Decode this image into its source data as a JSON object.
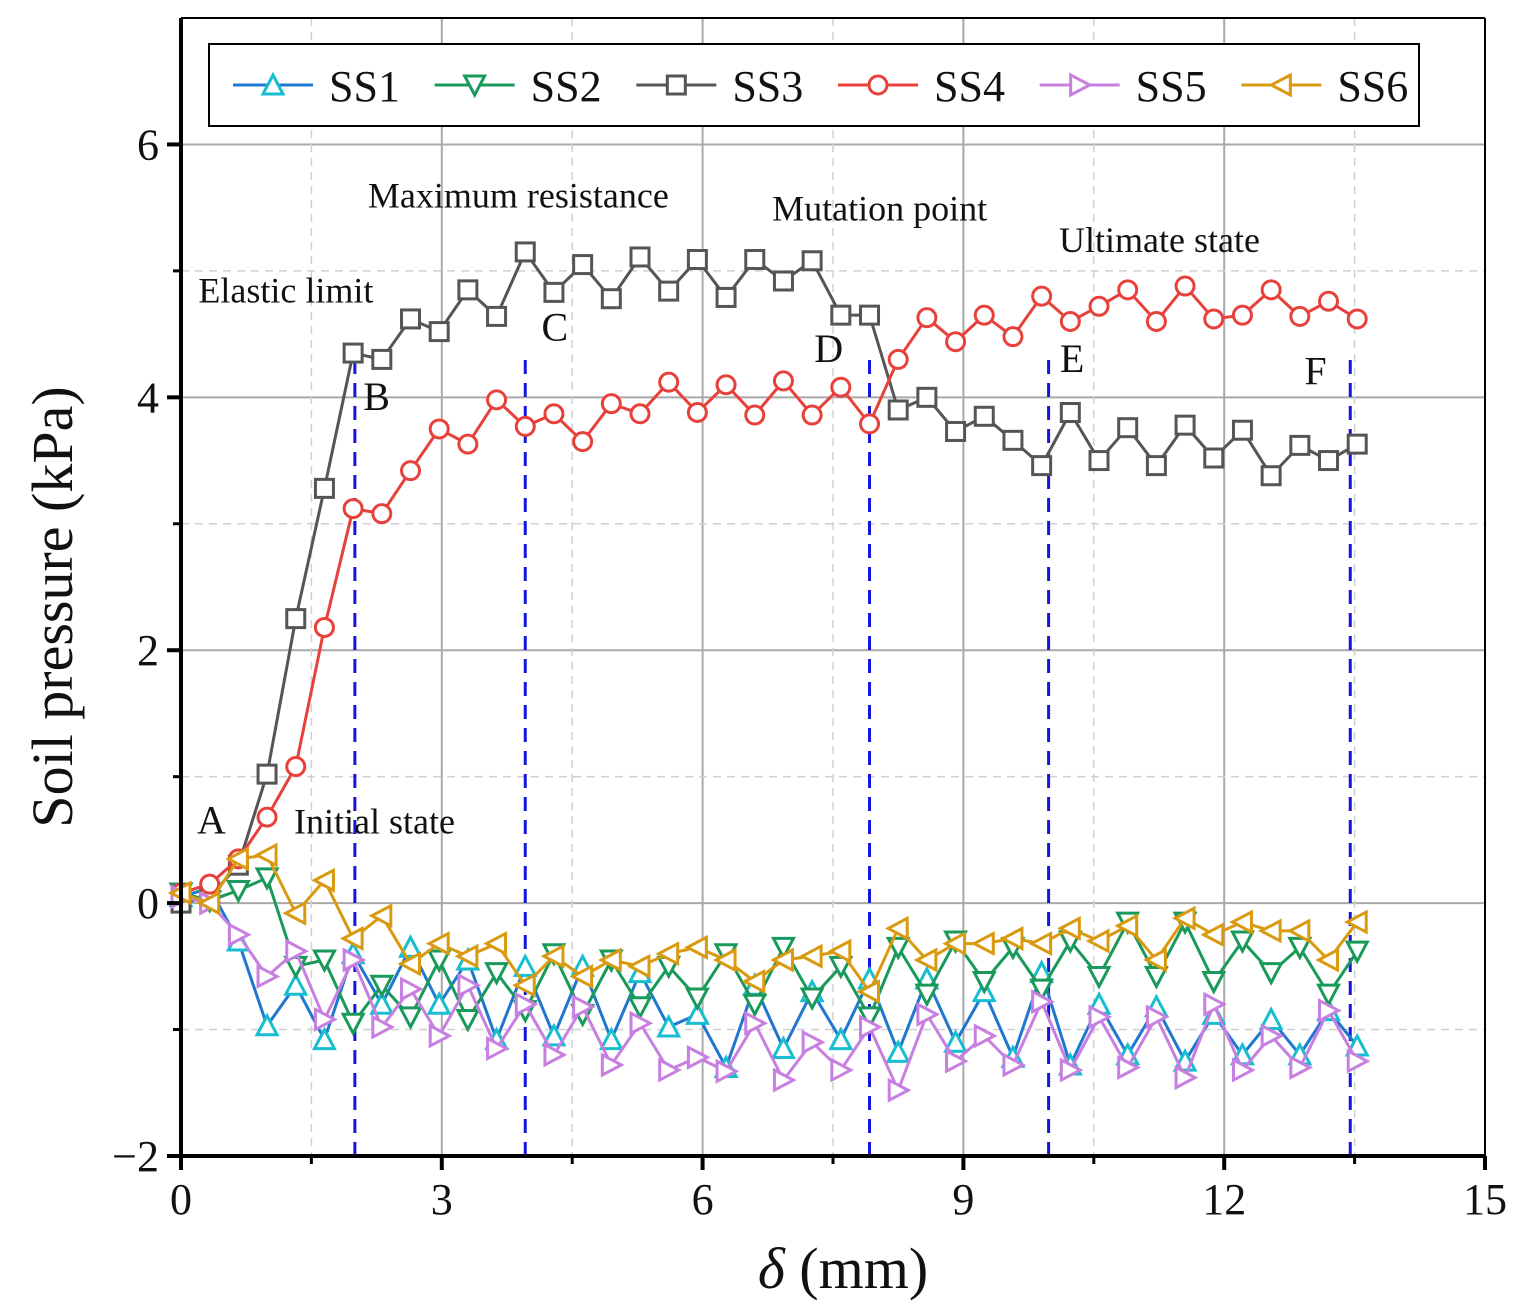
{
  "chart_data": {
    "type": "line",
    "title": "",
    "xlabel_symbol": "δ",
    "xlabel_unit": " (mm)",
    "ylabel": "Soil pressure (kPa)",
    "xlim": [
      0,
      15
    ],
    "ylim": [
      -2,
      7
    ],
    "xticks": [
      0,
      3,
      6,
      9,
      12,
      15
    ],
    "xtick_labels": [
      "0",
      "3",
      "6",
      "9",
      "12",
      "15"
    ],
    "yticks": [
      -2,
      0,
      2,
      4,
      6
    ],
    "ytick_labels": [
      "−2",
      "0",
      "2",
      "4",
      "6"
    ],
    "grid": true,
    "legend_position": "top",
    "x": [
      0,
      0.33,
      0.66,
      0.99,
      1.32,
      1.65,
      1.98,
      2.31,
      2.64,
      2.97,
      3.3,
      3.63,
      3.96,
      4.29,
      4.62,
      4.95,
      5.28,
      5.61,
      5.94,
      6.27,
      6.6,
      6.93,
      7.26,
      7.59,
      7.92,
      8.25,
      8.58,
      8.91,
      9.24,
      9.57,
      9.9,
      10.23,
      10.56,
      10.89,
      11.22,
      11.55,
      11.88,
      12.21,
      12.54,
      12.87,
      13.2,
      13.53
    ],
    "series": [
      {
        "name": "SS1",
        "color": "#1f77d0",
        "marker_color": "#17becf",
        "marker": "triangle-up",
        "values": [
          0.05,
          0.12,
          -0.3,
          -0.97,
          -0.65,
          -1.08,
          -0.4,
          -0.8,
          -0.35,
          -0.8,
          -0.45,
          -1.08,
          -0.5,
          -1.05,
          -0.5,
          -1.08,
          -0.55,
          -0.98,
          -0.88,
          -1.3,
          -0.65,
          -1.15,
          -0.7,
          -1.08,
          -0.6,
          -1.18,
          -0.6,
          -1.1,
          -0.7,
          -1.22,
          -0.55,
          -1.28,
          -0.8,
          -1.2,
          -0.82,
          -1.25,
          -0.88,
          -1.2,
          -0.92,
          -1.2,
          -0.85,
          -1.13
        ]
      },
      {
        "name": "SS2",
        "color": "#1a9a5a",
        "marker_color": "#1a9a5a",
        "marker": "triangle-down",
        "values": [
          0.08,
          0.02,
          0.1,
          0.2,
          -0.5,
          -0.45,
          -0.95,
          -0.65,
          -0.9,
          -0.45,
          -0.92,
          -0.55,
          -0.85,
          -0.4,
          -0.88,
          -0.45,
          -0.82,
          -0.5,
          -0.75,
          -0.4,
          -0.8,
          -0.35,
          -0.75,
          -0.5,
          -0.9,
          -0.35,
          -0.72,
          -0.3,
          -0.62,
          -0.35,
          -0.68,
          -0.3,
          -0.58,
          -0.15,
          -0.58,
          -0.15,
          -0.62,
          -0.3,
          -0.55,
          -0.35,
          -0.72,
          -0.38
        ]
      },
      {
        "name": "SS3",
        "color": "#555555",
        "marker_color": "#555555",
        "marker": "square",
        "values": [
          0.0,
          0.05,
          0.3,
          1.02,
          2.25,
          3.28,
          4.35,
          4.3,
          4.62,
          4.52,
          4.85,
          4.64,
          5.15,
          4.83,
          5.05,
          4.78,
          5.11,
          4.84,
          5.09,
          4.79,
          5.09,
          4.92,
          5.08,
          4.65,
          4.65,
          3.9,
          4.0,
          3.73,
          3.85,
          3.66,
          3.46,
          3.88,
          3.5,
          3.76,
          3.46,
          3.78,
          3.52,
          3.74,
          3.38,
          3.62,
          3.5,
          3.63
        ]
      },
      {
        "name": "SS4",
        "color": "#e8403a",
        "marker_color": "#e8403a",
        "marker": "circle",
        "values": [
          0.08,
          0.15,
          0.35,
          0.68,
          1.08,
          2.18,
          3.12,
          3.08,
          3.42,
          3.75,
          3.63,
          3.98,
          3.77,
          3.87,
          3.65,
          3.95,
          3.87,
          4.12,
          3.88,
          4.1,
          3.86,
          4.13,
          3.86,
          4.08,
          3.79,
          4.3,
          4.63,
          4.44,
          4.65,
          4.48,
          4.8,
          4.6,
          4.72,
          4.85,
          4.6,
          4.88,
          4.62,
          4.65,
          4.85,
          4.64,
          4.76,
          4.62
        ]
      },
      {
        "name": "SS5",
        "color": "#c77fe0",
        "marker_color": "#c77fe0",
        "marker": "triangle-right",
        "values": [
          0.05,
          0.0,
          -0.25,
          -0.58,
          -0.38,
          -0.92,
          -0.45,
          -0.98,
          -0.68,
          -1.05,
          -0.65,
          -1.15,
          -0.8,
          -1.2,
          -0.82,
          -1.28,
          -0.95,
          -1.32,
          -1.22,
          -1.33,
          -0.95,
          -1.4,
          -1.1,
          -1.32,
          -0.98,
          -1.48,
          -0.88,
          -1.25,
          -1.05,
          -1.28,
          -0.78,
          -1.32,
          -0.9,
          -1.3,
          -0.9,
          -1.38,
          -0.8,
          -1.32,
          -1.05,
          -1.3,
          -0.85,
          -1.25
        ]
      },
      {
        "name": "SS6",
        "color": "#d99a10",
        "marker_color": "#d99a10",
        "marker": "triangle-left",
        "values": [
          0.08,
          0.0,
          0.35,
          0.38,
          -0.08,
          0.18,
          -0.28,
          -0.1,
          -0.48,
          -0.32,
          -0.42,
          -0.32,
          -0.65,
          -0.42,
          -0.58,
          -0.45,
          -0.5,
          -0.4,
          -0.35,
          -0.45,
          -0.62,
          -0.45,
          -0.42,
          -0.38,
          -0.7,
          -0.2,
          -0.45,
          -0.32,
          -0.32,
          -0.28,
          -0.32,
          -0.2,
          -0.3,
          -0.18,
          -0.45,
          -0.12,
          -0.25,
          -0.15,
          -0.22,
          -0.22,
          -0.45,
          -0.15
        ]
      }
    ],
    "vlines": [
      2.0,
      3.96,
      7.92,
      9.98,
      13.45
    ],
    "point_labels": [
      {
        "text": "A",
        "x": 0.35,
        "y": 0.55
      },
      {
        "text": "B",
        "x": 2.25,
        "y": 3.9
      },
      {
        "text": "C",
        "x": 4.3,
        "y": 4.45
      },
      {
        "text": "D",
        "x": 7.45,
        "y": 4.28
      },
      {
        "text": "E",
        "x": 10.25,
        "y": 4.2
      },
      {
        "text": "F",
        "x": 13.05,
        "y": 4.1
      }
    ],
    "annotations": [
      {
        "text": "Elastic limit",
        "x": 0.2,
        "y": 4.75
      },
      {
        "text": "Maximum resistance",
        "x": 2.15,
        "y": 5.5
      },
      {
        "text": "Mutation point",
        "x": 6.8,
        "y": 5.4
      },
      {
        "text": "Ultimate state",
        "x": 10.1,
        "y": 5.15
      },
      {
        "text": "Initial state",
        "x": 1.3,
        "y": 0.55
      }
    ]
  }
}
